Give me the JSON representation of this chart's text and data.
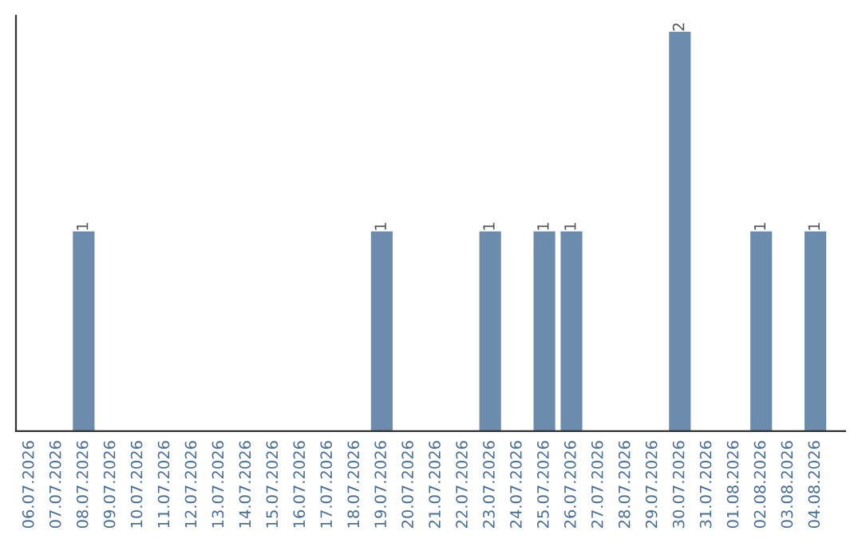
{
  "chart_data": {
    "type": "bar",
    "categories": [
      "06.07.2026",
      "07.07.2026",
      "08.07.2026",
      "09.07.2026",
      "10.07.2026",
      "11.07.2026",
      "12.07.2026",
      "13.07.2026",
      "14.07.2026",
      "15.07.2026",
      "16.07.2026",
      "17.07.2026",
      "18.07.2026",
      "19.07.2026",
      "20.07.2026",
      "21.07.2026",
      "22.07.2026",
      "23.07.2026",
      "24.07.2026",
      "25.07.2026",
      "26.07.2026",
      "27.07.2026",
      "28.07.2026",
      "29.07.2026",
      "30.07.2026",
      "31.07.2026",
      "01.08.2026",
      "02.08.2026",
      "03.08.2026",
      "04.08.2026"
    ],
    "values": [
      0,
      0,
      1,
      0,
      0,
      0,
      0,
      0,
      0,
      0,
      0,
      0,
      0,
      1,
      0,
      0,
      0,
      1,
      0,
      1,
      1,
      0,
      0,
      0,
      2,
      0,
      0,
      1,
      0,
      1
    ],
    "color": "#6b8cac",
    "value_labels": [
      null,
      null,
      "1",
      null,
      null,
      null,
      null,
      null,
      null,
      null,
      null,
      null,
      null,
      "1",
      null,
      null,
      null,
      "1",
      null,
      "1",
      "1",
      null,
      null,
      null,
      "2",
      null,
      null,
      "1",
      null,
      "1"
    ],
    "tick_labels": "x",
    "grid": false
  }
}
